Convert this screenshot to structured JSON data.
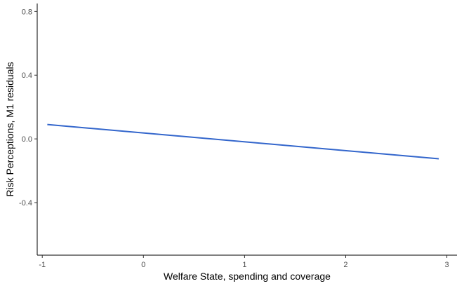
{
  "chart_data": {
    "type": "line",
    "title": "",
    "xlabel": "Welfare State, spending and coverage",
    "ylabel": "Risk Perceptions, M1 residuals",
    "xlim": [
      -1.05,
      3.1
    ],
    "ylim": [
      -0.73,
      0.85
    ],
    "x_ticks": [
      -1,
      0,
      1,
      2,
      3
    ],
    "x_tick_labels": [
      "-1",
      "0",
      "1",
      "2",
      "3"
    ],
    "y_ticks": [
      -0.4,
      0.0,
      0.4,
      0.8
    ],
    "y_tick_labels": [
      "-0.4",
      "0.0",
      "0.4",
      "0.8"
    ],
    "grid": false,
    "legend": "none",
    "series": [
      {
        "color": "#3366cc",
        "x": [
          -0.95,
          2.92
        ],
        "y": [
          0.09,
          -0.125
        ]
      }
    ]
  }
}
